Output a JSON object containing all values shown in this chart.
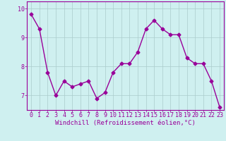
{
  "x": [
    0,
    1,
    2,
    3,
    4,
    5,
    6,
    7,
    8,
    9,
    10,
    11,
    12,
    13,
    14,
    15,
    16,
    17,
    18,
    19,
    20,
    21,
    22,
    23
  ],
  "y": [
    9.8,
    9.3,
    7.8,
    7.0,
    7.5,
    7.3,
    7.4,
    7.5,
    6.9,
    7.1,
    7.8,
    8.1,
    8.1,
    8.5,
    9.3,
    9.6,
    9.3,
    9.1,
    9.1,
    8.3,
    8.1,
    8.1,
    7.5,
    6.6
  ],
  "line_color": "#990099",
  "marker": "D",
  "markersize": 2.5,
  "linewidth": 1.0,
  "xlabel": "Windchill (Refroidissement éolien,°C)",
  "ylabel": "",
  "title": "",
  "xlim": [
    -0.5,
    23.5
  ],
  "ylim": [
    6.5,
    10.25
  ],
  "yticks": [
    7,
    8,
    9,
    10
  ],
  "xticks": [
    0,
    1,
    2,
    3,
    4,
    5,
    6,
    7,
    8,
    9,
    10,
    11,
    12,
    13,
    14,
    15,
    16,
    17,
    18,
    19,
    20,
    21,
    22,
    23
  ],
  "bg_color": "#cff0f0",
  "grid_color": "#aacccc",
  "font_color": "#990099",
  "xlabel_fontsize": 6.5,
  "tick_fontsize": 6.0,
  "font_family": "monospace"
}
